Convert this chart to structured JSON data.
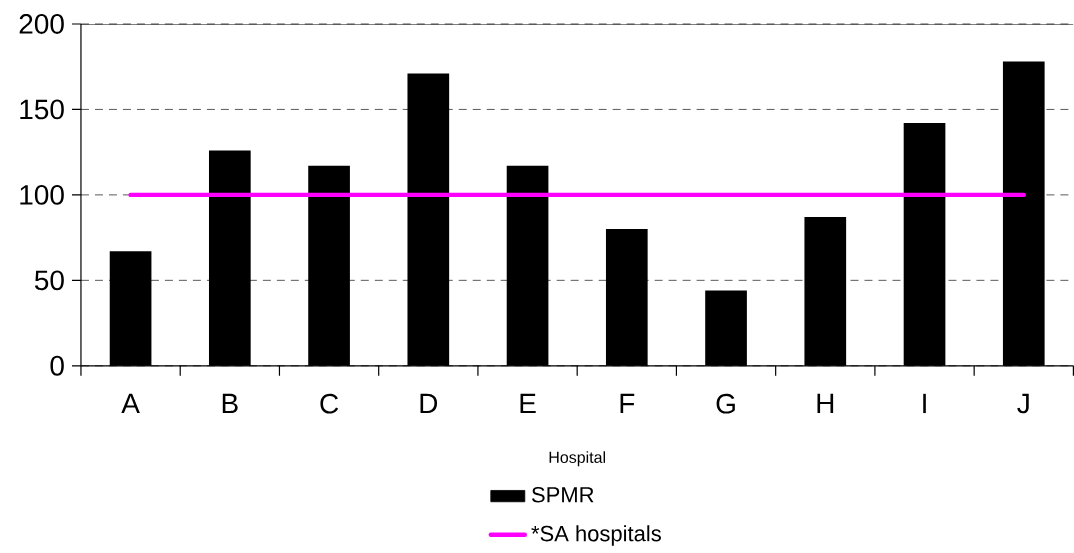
{
  "chart_data": {
    "type": "bar",
    "xlabel": "Hospital",
    "categories": [
      "A",
      "B",
      "C",
      "D",
      "E",
      "F",
      "G",
      "H",
      "I",
      "J"
    ],
    "series": [
      {
        "name": "SPMR",
        "color": "#000000",
        "values": [
          67,
          126,
          117,
          171,
          117,
          80,
          44,
          87,
          142,
          178
        ]
      },
      {
        "name": "*SA hospitals",
        "type": "line",
        "color": "#ff00ff",
        "values": [
          100,
          100,
          100,
          100,
          100,
          100,
          100,
          100,
          100,
          100
        ]
      }
    ],
    "ylim": [
      0,
      200
    ],
    "yticks": [
      0,
      50,
      100,
      150,
      200
    ],
    "grid": "y",
    "legend": "bottom"
  }
}
